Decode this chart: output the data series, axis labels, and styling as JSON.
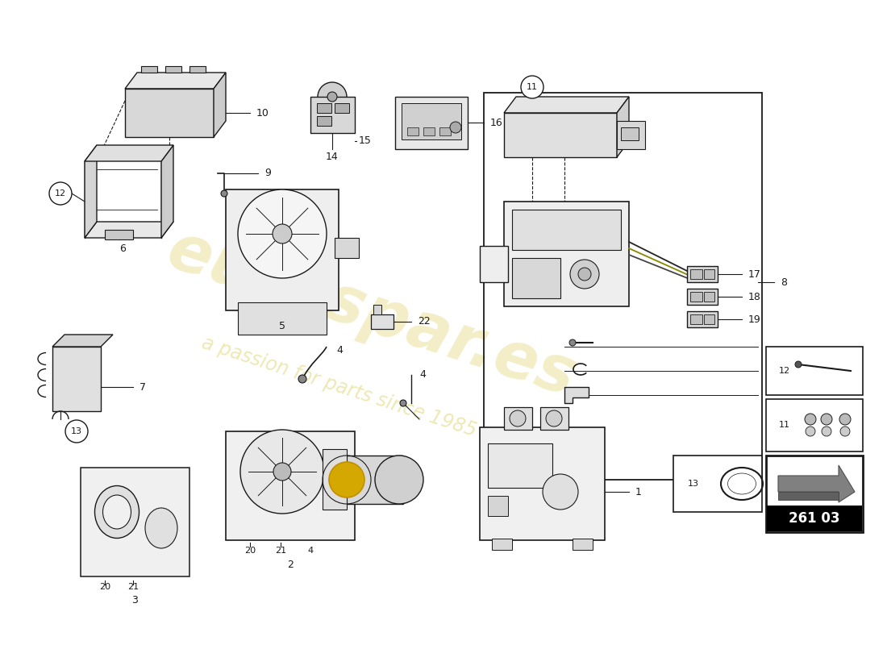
{
  "bg_color": "#ffffff",
  "line_color": "#1a1a1a",
  "part_number_badge": "261 03",
  "watermark_color": "#c8b400",
  "layout": {
    "figw": 11.0,
    "figh": 8.0,
    "dpi": 100
  }
}
